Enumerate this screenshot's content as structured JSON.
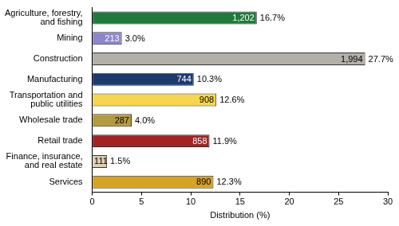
{
  "chart_data": {
    "type": "bar",
    "orientation": "horizontal",
    "categories": [
      "Agriculture, forestry, and fishing",
      "Mining",
      "Construction",
      "Manufacturing",
      "Transportation and public utilities",
      "Wholesale trade",
      "Retail trade",
      "Finance, insurance, and real estate",
      "Services"
    ],
    "values": [
      16.7,
      3.0,
      27.7,
      10.3,
      12.6,
      4.0,
      11.9,
      1.5,
      12.3
    ],
    "value_labels": [
      "16.7%",
      "3.0%",
      "27.7%",
      "10.3%",
      "12.6%",
      "4.0%",
      "11.9%",
      "1.5%",
      "12.3%"
    ],
    "counts": [
      1202,
      213,
      1994,
      744,
      908,
      287,
      858,
      111,
      890
    ],
    "count_labels": [
      "1,202",
      "213",
      "1,994",
      "744",
      "908",
      "287",
      "858",
      "111",
      "890"
    ],
    "colors": [
      "#1f7a3c",
      "#8c86cc",
      "#b3afa9",
      "#1d3a6e",
      "#f5d64c",
      "#b69b3e",
      "#a32222",
      "#dccfb3",
      "#d6a322"
    ],
    "x_label": "Distribution (%)",
    "xlim": [
      0,
      30
    ],
    "xticks": [
      0,
      5,
      10,
      15,
      20,
      25,
      30
    ],
    "grid": false,
    "data_labels": true
  }
}
